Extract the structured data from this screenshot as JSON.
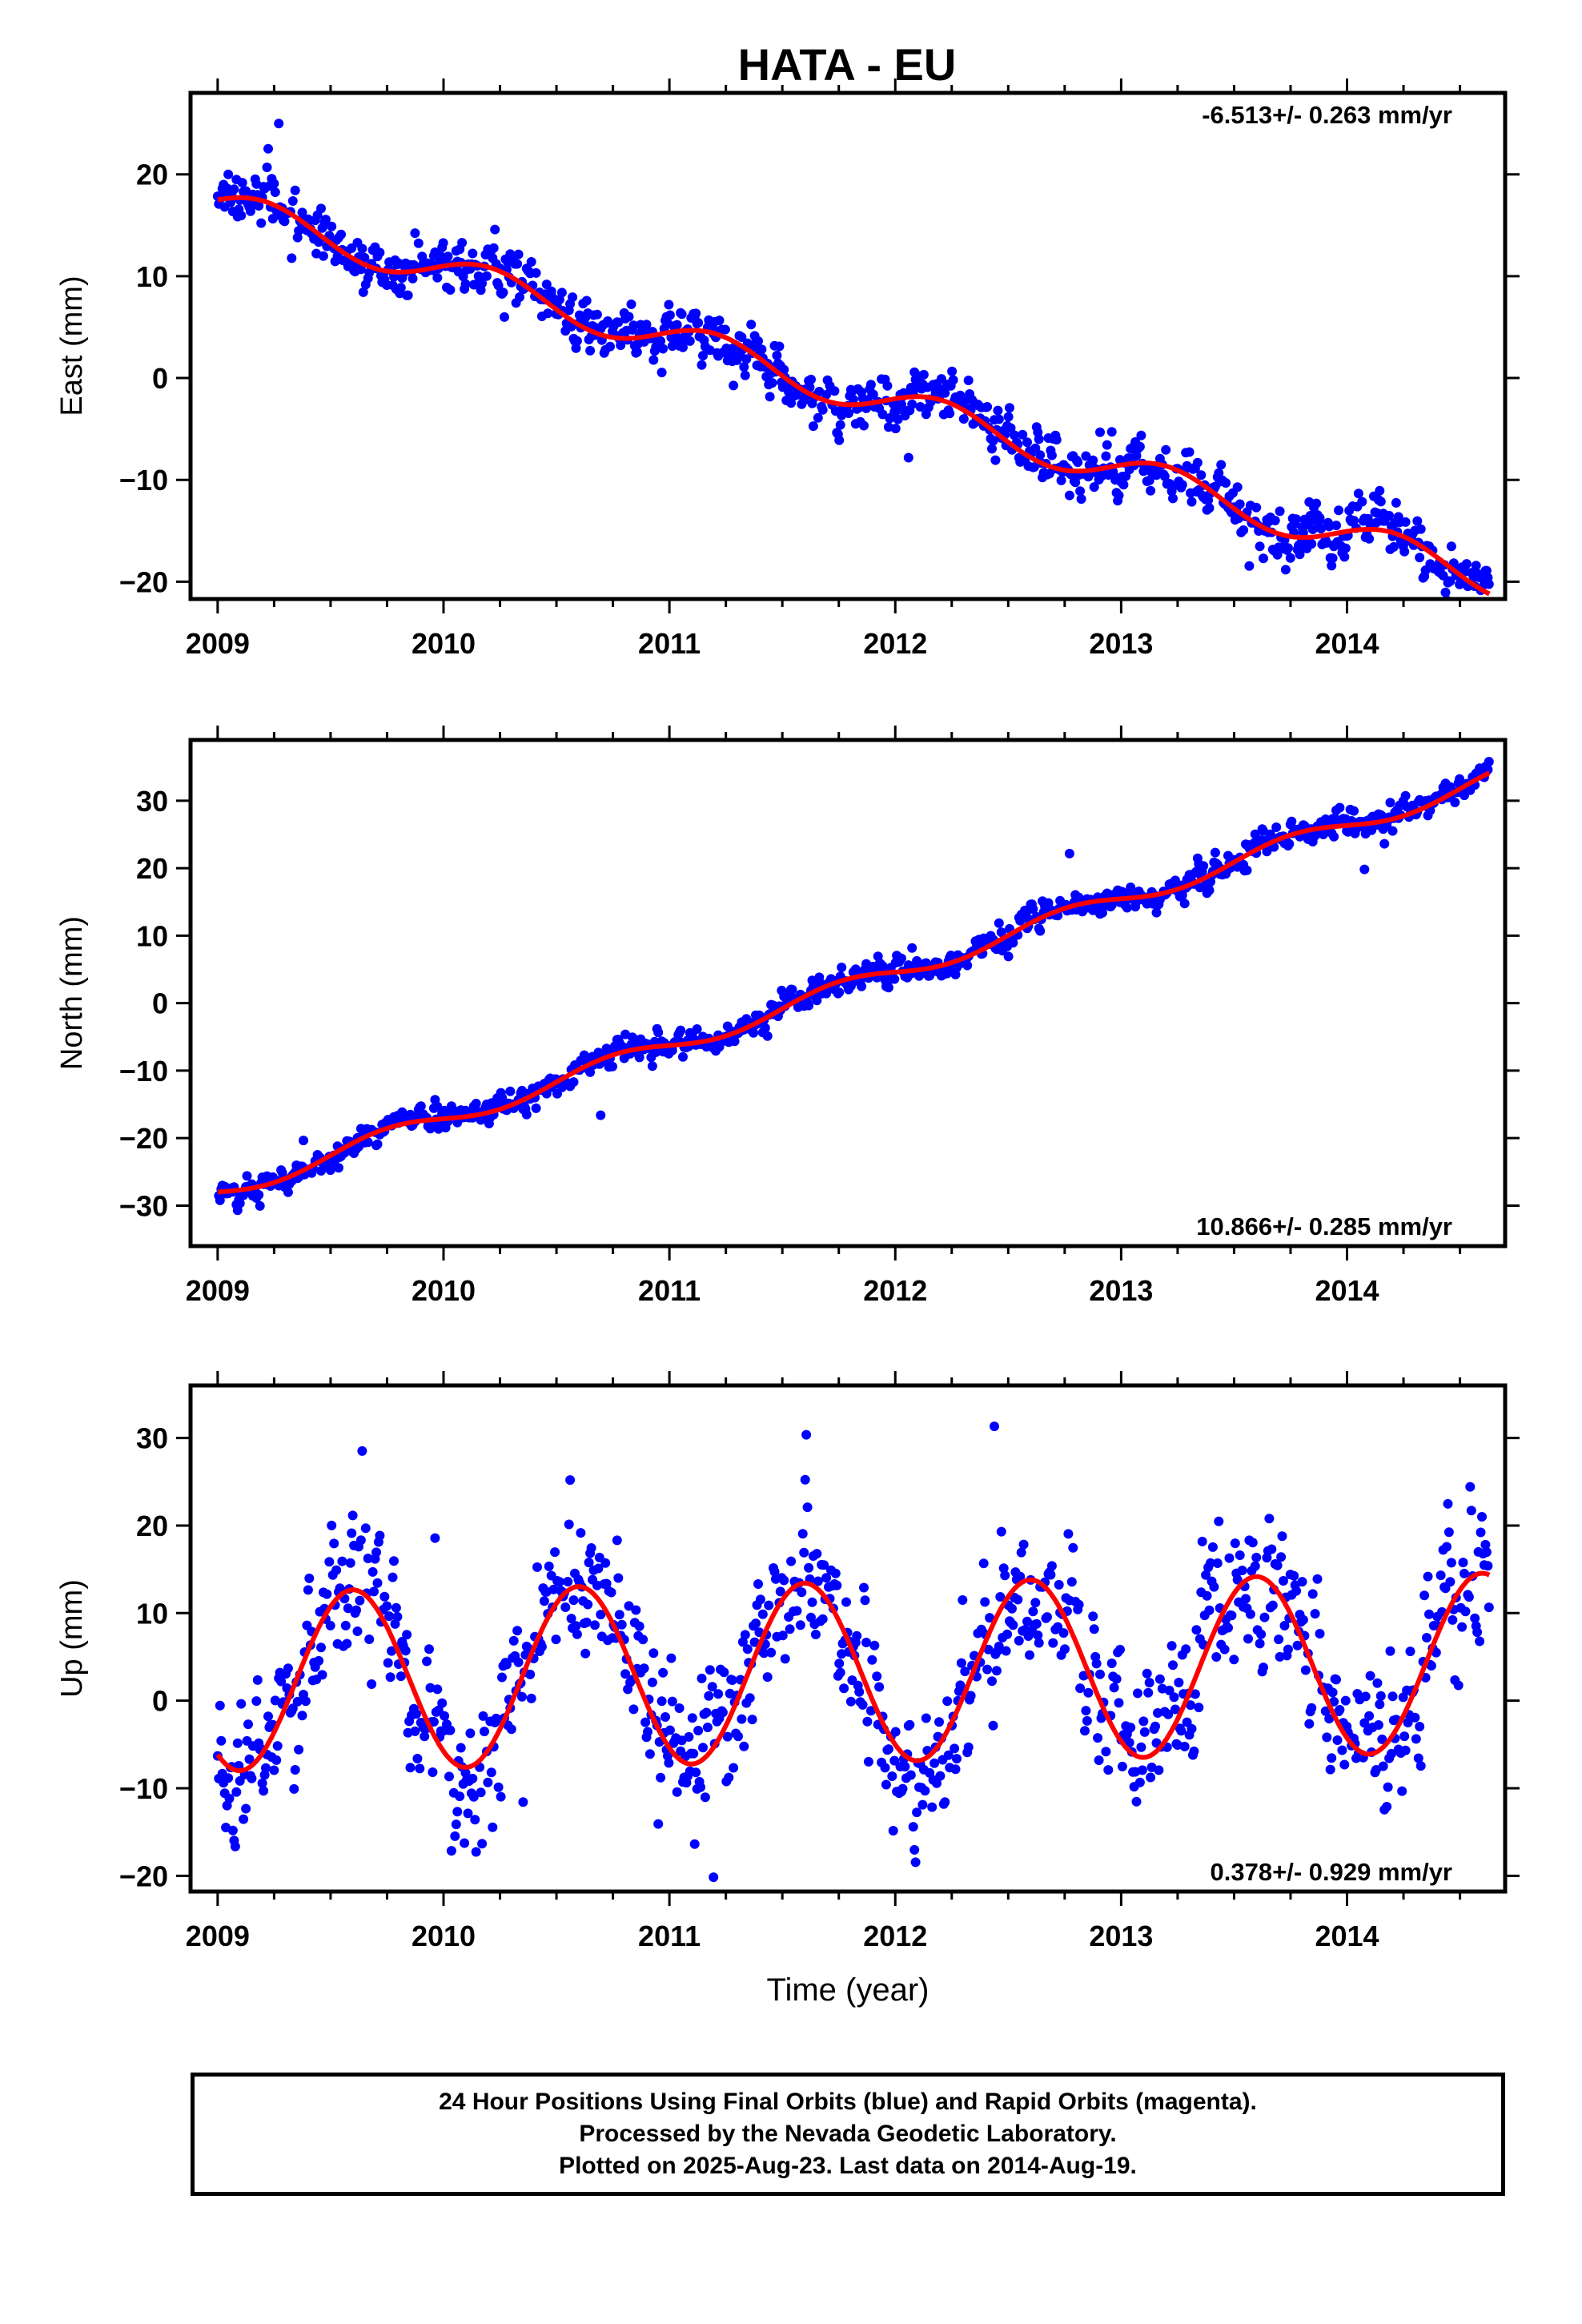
{
  "title": "HATA - EU",
  "colors": {
    "points": "#0000ff",
    "model": "#ff0000",
    "frame": "#000000"
  },
  "chart_data": [
    {
      "type": "scatter",
      "panel": "east",
      "ylabel": "East (mm)",
      "xlabel": "",
      "xlim": [
        2008.88,
        2014.7
      ],
      "ylim": [
        -21.7,
        28
      ],
      "xticks": [
        2009,
        2010,
        2011,
        2012,
        2013,
        2014
      ],
      "yticks": [
        -20,
        -10,
        0,
        10,
        20
      ],
      "rate_label": "-6.513+/- 0.263 mm/yr",
      "rate_position": "top-right",
      "model": {
        "offset": 17.0,
        "rate": -6.513,
        "t0": 2009.0,
        "amp_cos": -0.6,
        "amp_sin": 1.3,
        "steps": []
      },
      "noise_sd": 1.3,
      "series": [
        {
          "name": "",
          "role": "points"
        },
        {
          "name": "",
          "role": "model"
        }
      ]
    },
    {
      "type": "scatter",
      "panel": "north",
      "ylabel": "North (mm)",
      "xlabel": "",
      "xlim": [
        2008.88,
        2014.7
      ],
      "ylim": [
        -36,
        39
      ],
      "xticks": [
        2009,
        2010,
        2011,
        2012,
        2013,
        2014
      ],
      "yticks": [
        -30,
        -20,
        -10,
        0,
        10,
        20,
        30
      ],
      "rate_label": "10.866+/- 0.285 mm/yr",
      "rate_position": "bottom-right",
      "model": {
        "offset": -28.0,
        "rate": 10.866,
        "t0": 2009.0,
        "amp_cos": 0.0,
        "amp_sin": -1.3,
        "steps": []
      },
      "noise_sd": 1.0,
      "series": [
        {
          "name": "",
          "role": "points"
        },
        {
          "name": "",
          "role": "model"
        }
      ]
    },
    {
      "type": "scatter",
      "panel": "up",
      "ylabel": "Up (mm)",
      "xlabel": "Time (year)",
      "xlim": [
        2008.88,
        2014.7
      ],
      "ylim": [
        -21.8,
        36
      ],
      "xticks": [
        2009,
        2010,
        2011,
        2012,
        2013,
        2014
      ],
      "yticks": [
        -20,
        -10,
        0,
        10,
        20,
        30
      ],
      "rate_label": "0.378+/- 0.929 mm/yr",
      "rate_position": "bottom-right",
      "model": {
        "offset": 2.2,
        "rate": 0.378,
        "t0": 2009.0,
        "amp_cos": 9.9,
        "amp_sin": -0.6,
        "steps": []
      },
      "noise_sd": 4.2,
      "series": [
        {
          "name": "",
          "role": "points"
        },
        {
          "name": "",
          "role": "model"
        }
      ]
    }
  ],
  "footer": {
    "line1": "24 Hour Positions Using Final Orbits (blue) and Rapid Orbits (magenta).",
    "line2": "Processed by the Nevada Geodetic Laboratory.",
    "line3": "Plotted on 2025-Aug-23. Last data on 2014-Aug-19."
  }
}
